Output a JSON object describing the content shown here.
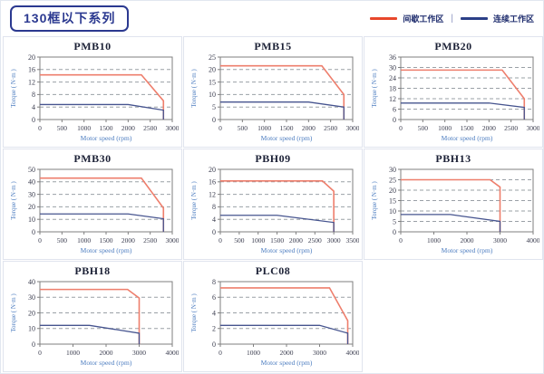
{
  "page": {
    "title": "130框以下系列"
  },
  "legend": {
    "separator": "|",
    "items": [
      {
        "label": "间歇工作区",
        "color": "#e8472b"
      },
      {
        "label": "连续工作区",
        "color": "#2b3f87"
      }
    ]
  },
  "chart_meta": {
    "xlabel": "Motor speed (rpm)",
    "ylabel": "Torque ( N·m )",
    "colors": {
      "intermittent": "#ee7e6c",
      "continuous": "#46548f",
      "grid": "#9aa0a6",
      "frame": "#7f7f7f",
      "tick_text": "#3a3c4e",
      "axis_label": "#4d7dc0"
    }
  },
  "chart_data": [
    {
      "type": "line",
      "title": "PMB10",
      "xlabel": "Motor speed (rpm)",
      "ylabel": "Torque ( N·m )",
      "xlim": [
        0,
        3000
      ],
      "ylim": [
        0,
        20
      ],
      "xticks": [
        0,
        500,
        1000,
        1500,
        2000,
        2500,
        3000
      ],
      "yticks": [
        0,
        4,
        8,
        12,
        16,
        20
      ],
      "grid": true,
      "legend_position": "none",
      "series": [
        {
          "name": "间歇工作区",
          "color_key": "intermittent",
          "points": [
            [
              0,
              14.3
            ],
            [
              2300,
              14.3
            ],
            [
              2800,
              6
            ],
            [
              2800,
              0
            ]
          ]
        },
        {
          "name": "连续工作区",
          "color_key": "continuous",
          "points": [
            [
              0,
              4.8
            ],
            [
              2000,
              4.8
            ],
            [
              2800,
              3
            ],
            [
              2800,
              0
            ]
          ]
        }
      ]
    },
    {
      "type": "line",
      "title": "PMB15",
      "xlabel": "Motor speed (rpm)",
      "ylabel": "Torque ( N·m )",
      "xlim": [
        0,
        3000
      ],
      "ylim": [
        0,
        25
      ],
      "xticks": [
        0,
        500,
        1000,
        1500,
        2000,
        2500,
        3000
      ],
      "yticks": [
        0,
        5,
        10,
        15,
        20,
        25
      ],
      "grid": true,
      "legend_position": "none",
      "series": [
        {
          "name": "间歇工作区",
          "color_key": "intermittent",
          "points": [
            [
              0,
              21.5
            ],
            [
              2300,
              21.5
            ],
            [
              2800,
              10
            ],
            [
              2800,
              0
            ]
          ]
        },
        {
          "name": "连续工作区",
          "color_key": "continuous",
          "points": [
            [
              0,
              7
            ],
            [
              2000,
              7
            ],
            [
              2800,
              5
            ],
            [
              2800,
              0
            ]
          ]
        }
      ]
    },
    {
      "type": "line",
      "title": "PMB20",
      "xlabel": "Motor speed (rpm)",
      "ylabel": "Torque ( N·m )",
      "xlim": [
        0,
        3000
      ],
      "ylim": [
        0,
        36
      ],
      "xticks": [
        0,
        500,
        1000,
        1500,
        2000,
        2500,
        3000
      ],
      "yticks": [
        0,
        6,
        12,
        18,
        24,
        30,
        36
      ],
      "grid": true,
      "legend_position": "none",
      "series": [
        {
          "name": "间歇工作区",
          "color_key": "intermittent",
          "points": [
            [
              0,
              28.5
            ],
            [
              2300,
              28.5
            ],
            [
              2800,
              12
            ],
            [
              2800,
              0
            ]
          ]
        },
        {
          "name": "连续工作区",
          "color_key": "continuous",
          "points": [
            [
              0,
              9.5
            ],
            [
              2000,
              9.5
            ],
            [
              2800,
              7
            ],
            [
              2800,
              0
            ]
          ]
        }
      ]
    },
    {
      "type": "line",
      "title": "PMB30",
      "xlabel": "Motor speed (rpm)",
      "ylabel": "Torque ( N·m )",
      "xlim": [
        0,
        3000
      ],
      "ylim": [
        0,
        50
      ],
      "xticks": [
        0,
        500,
        1000,
        1500,
        2000,
        2500,
        3000
      ],
      "yticks": [
        0,
        10,
        20,
        30,
        40,
        50
      ],
      "grid": true,
      "legend_position": "none",
      "series": [
        {
          "name": "间歇工作区",
          "color_key": "intermittent",
          "points": [
            [
              0,
              43
            ],
            [
              2300,
              43
            ],
            [
              2800,
              19
            ],
            [
              2800,
              0
            ]
          ]
        },
        {
          "name": "连续工作区",
          "color_key": "continuous",
          "points": [
            [
              0,
              14.3
            ],
            [
              2000,
              14.3
            ],
            [
              2800,
              10.5
            ],
            [
              2800,
              0
            ]
          ]
        }
      ]
    },
    {
      "type": "line",
      "title": "PBH09",
      "xlabel": "Motor speed (rpm)",
      "ylabel": "Torque ( N·m )",
      "xlim": [
        0,
        3500
      ],
      "ylim": [
        0,
        20
      ],
      "xticks": [
        0,
        500,
        1000,
        1500,
        2000,
        2500,
        3000,
        3500
      ],
      "yticks": [
        0,
        4,
        8,
        12,
        16,
        20
      ],
      "grid": true,
      "legend_position": "none",
      "series": [
        {
          "name": "间歇工作区",
          "color_key": "intermittent",
          "points": [
            [
              0,
              16.3
            ],
            [
              2700,
              16.3
            ],
            [
              3000,
              13
            ],
            [
              3000,
              0
            ]
          ]
        },
        {
          "name": "连续工作区",
          "color_key": "continuous",
          "points": [
            [
              0,
              5.3
            ],
            [
              1500,
              5.3
            ],
            [
              3000,
              3
            ],
            [
              3000,
              0
            ]
          ]
        }
      ]
    },
    {
      "type": "line",
      "title": "PBH13",
      "xlabel": "Motor speed (rpm)",
      "ylabel": "Torque ( N·m )",
      "xlim": [
        0,
        4000
      ],
      "ylim": [
        0,
        30
      ],
      "xticks": [
        0,
        1000,
        2000,
        3000,
        4000
      ],
      "yticks": [
        0,
        5,
        10,
        15,
        20,
        25,
        30
      ],
      "grid": true,
      "legend_position": "none",
      "series": [
        {
          "name": "间歇工作区",
          "color_key": "intermittent",
          "points": [
            [
              0,
              25
            ],
            [
              2700,
              25
            ],
            [
              3000,
              21.5
            ],
            [
              3000,
              0
            ]
          ]
        },
        {
          "name": "连续工作区",
          "color_key": "continuous",
          "points": [
            [
              0,
              8.3
            ],
            [
              1500,
              8.3
            ],
            [
              3000,
              5
            ],
            [
              3000,
              0
            ]
          ]
        }
      ]
    },
    {
      "type": "line",
      "title": "PBH18",
      "xlabel": "Motor speed (rpm)",
      "ylabel": "Torque ( N·m )",
      "xlim": [
        0,
        4000
      ],
      "ylim": [
        0,
        40
      ],
      "xticks": [
        0,
        1000,
        2000,
        3000,
        4000
      ],
      "yticks": [
        0,
        10,
        20,
        30,
        40
      ],
      "grid": true,
      "legend_position": "none",
      "series": [
        {
          "name": "间歇工作区",
          "color_key": "intermittent",
          "points": [
            [
              0,
              35
            ],
            [
              2650,
              35
            ],
            [
              3000,
              29.5
            ],
            [
              3000,
              0
            ]
          ]
        },
        {
          "name": "连续工作区",
          "color_key": "continuous",
          "points": [
            [
              0,
              12
            ],
            [
              1500,
              12
            ],
            [
              3000,
              7
            ],
            [
              3000,
              0
            ]
          ]
        }
      ]
    },
    {
      "type": "line",
      "title": "PLC08",
      "xlabel": "Motor speed (rpm)",
      "ylabel": "Torque ( N·m )",
      "xlim": [
        0,
        4000
      ],
      "ylim": [
        0,
        8
      ],
      "xticks": [
        0,
        1000,
        2000,
        3000,
        4000
      ],
      "yticks": [
        0,
        2,
        4,
        6,
        8
      ],
      "grid": true,
      "legend_position": "none",
      "series": [
        {
          "name": "间歇工作区",
          "color_key": "intermittent",
          "points": [
            [
              0,
              7.2
            ],
            [
              3300,
              7.2
            ],
            [
              3850,
              3
            ],
            [
              3850,
              0
            ]
          ]
        },
        {
          "name": "连续工作区",
          "color_key": "continuous",
          "points": [
            [
              0,
              2.4
            ],
            [
              3000,
              2.4
            ],
            [
              3850,
              1.4
            ],
            [
              3850,
              0
            ]
          ]
        }
      ]
    }
  ]
}
